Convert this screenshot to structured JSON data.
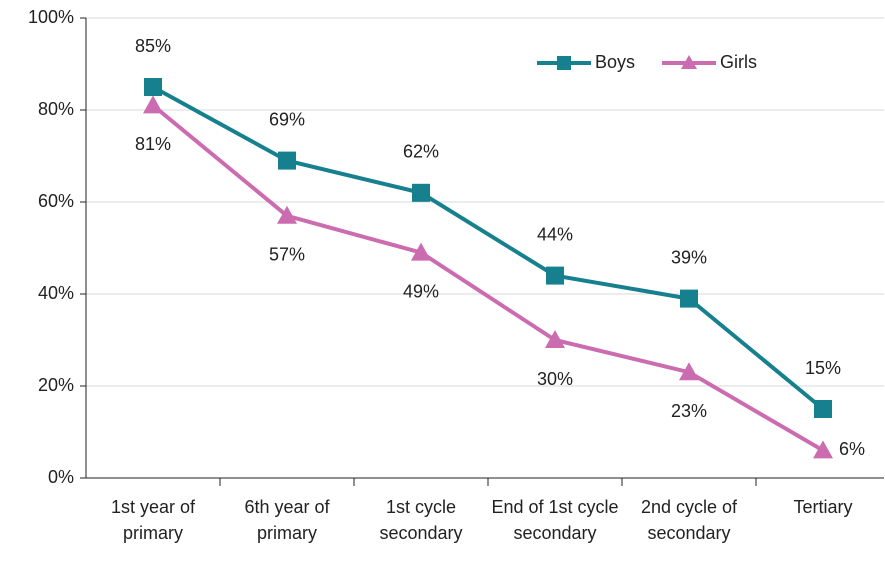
{
  "chart_data": {
    "type": "line",
    "categories": [
      "1st year of primary",
      "6th year of primary",
      "1st cycle secondary",
      "End of 1st cycle secondary",
      "2nd cycle of secondary",
      "Tertiary"
    ],
    "series": [
      {
        "name": "Boys",
        "color": "#16808e",
        "marker": "square",
        "values": [
          85,
          69,
          62,
          44,
          39,
          15
        ],
        "value_labels": [
          "85%",
          "69%",
          "62%",
          "44%",
          "39%",
          "15%"
        ]
      },
      {
        "name": "Girls",
        "color": "#cc6cb0",
        "marker": "triangle",
        "values": [
          81,
          57,
          49,
          30,
          23,
          6
        ],
        "value_labels": [
          "81%",
          "57%",
          "49%",
          "30%",
          "23%",
          "6%"
        ]
      }
    ],
    "ylim": [
      0,
      100
    ],
    "yticks": [
      {
        "value": 0,
        "label": "0%"
      },
      {
        "value": 20,
        "label": "20%"
      },
      {
        "value": 40,
        "label": "40%"
      },
      {
        "value": 60,
        "label": "60%"
      },
      {
        "value": 80,
        "label": "80%"
      },
      {
        "value": 100,
        "label": "100%"
      }
    ],
    "grid": true,
    "legend": "top-right"
  }
}
